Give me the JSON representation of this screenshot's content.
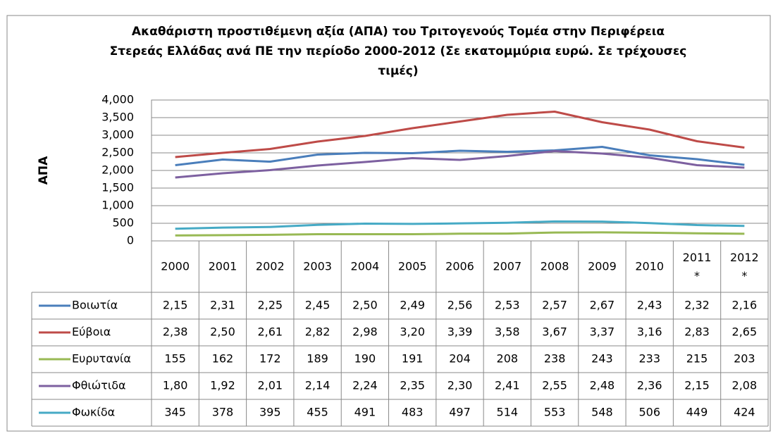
{
  "chart_data": {
    "type": "line",
    "title": [
      "Ακαθάριστη προστιθέμενη αξία  (ΑΠΑ)  του Τριτογενούς Τομέα  στην  Περιφέρεια",
      "Στερεάς Ελλάδας ανά ΠΕ την περίοδο 2000-2012 (Σε εκατομμύρια ευρώ. Σε τρέχουσες",
      "τιμές)"
    ],
    "y_label": "ΑΠΑ",
    "categories": [
      "2000",
      "2001",
      "2002",
      "2003",
      "2004",
      "2005",
      "2006",
      "2007",
      "2008",
      "2009",
      "2010",
      "2011 *",
      "2012 *"
    ],
    "ylim": [
      0,
      4000
    ],
    "yticks": [
      0,
      500,
      {
        "value": 1000,
        "label": "1,000"
      },
      {
        "value": 1500,
        "label": "1,500"
      },
      {
        "value": 2000,
        "label": "2,000"
      },
      {
        "value": 2500,
        "label": "2,500"
      },
      {
        "value": 3000,
        "label": "3,000"
      },
      {
        "value": 3500,
        "label": "3,500"
      },
      {
        "value": 4000,
        "label": "4,000"
      }
    ],
    "grid": true,
    "series": [
      {
        "name": "Βοιωτία",
        "color": "#4a7ebb",
        "values": [
          2150,
          2310,
          2250,
          2450,
          2500,
          2490,
          2560,
          2530,
          2570,
          2670,
          2430,
          2320,
          2160
        ],
        "value_labels": [
          "2,15",
          "2,31",
          "2,25",
          "2,45",
          "2,50",
          "2,49",
          "2,56",
          "2,53",
          "2,57",
          "2,67",
          "2,43",
          "2,32",
          "2,16"
        ]
      },
      {
        "name": "Εύβοια",
        "color": "#be4b48",
        "values": [
          2380,
          2500,
          2610,
          2820,
          2980,
          3200,
          3390,
          3580,
          3670,
          3370,
          3160,
          2830,
          2650
        ],
        "value_labels": [
          "2,38",
          "2,50",
          "2,61",
          "2,82",
          "2,98",
          "3,20",
          "3,39",
          "3,58",
          "3,67",
          "3,37",
          "3,16",
          "2,83",
          "2,65"
        ]
      },
      {
        "name": "Ευρυτανία",
        "color": "#98b954",
        "values": [
          155,
          162,
          172,
          189,
          190,
          191,
          204,
          208,
          238,
          243,
          233,
          215,
          203
        ]
      },
      {
        "name": "Φθιώτιδα",
        "color": "#7d60a0",
        "values": [
          1800,
          1920,
          2010,
          2140,
          2240,
          2350,
          2300,
          2410,
          2550,
          2480,
          2360,
          2150,
          2080
        ],
        "value_labels": [
          "1,80",
          "1,92",
          "2,01",
          "2,14",
          "2,24",
          "2,35",
          "2,30",
          "2,41",
          "2,55",
          "2,48",
          "2,36",
          "2,15",
          "2,08"
        ]
      },
      {
        "name": "Φωκίδα",
        "color": "#46aac5",
        "values": [
          345,
          378,
          395,
          455,
          491,
          483,
          497,
          514,
          553,
          548,
          506,
          449,
          424
        ]
      }
    ]
  }
}
